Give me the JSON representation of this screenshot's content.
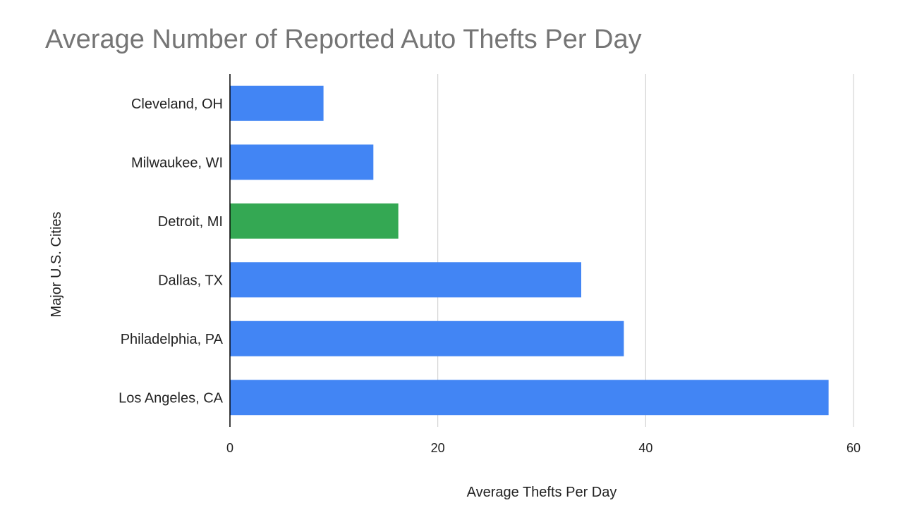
{
  "chart_data": {
    "type": "bar",
    "orientation": "horizontal",
    "title": "Average Number of Reported Auto Thefts Per Day",
    "xlabel": "Average Thefts Per Day",
    "ylabel": "Major U.S. Cities",
    "categories": [
      "Cleveland, OH",
      "Milwaukee, WI",
      "Detroit, MI",
      "Dallas, TX",
      "Philadelphia, PA",
      "Los Angeles, CA"
    ],
    "values": [
      9,
      13.8,
      16.2,
      33.8,
      37.9,
      57.6
    ],
    "bar_colors": [
      "#4285f4",
      "#4285f4",
      "#34a853",
      "#4285f4",
      "#4285f4",
      "#4285f4"
    ],
    "xlim": [
      0,
      60
    ],
    "xticks": [
      0,
      20,
      40,
      60
    ],
    "grid": true,
    "legend": "none"
  },
  "colors": {
    "title": "#757575",
    "axis": "#000000",
    "grid": "#cccccc",
    "text": "#222222"
  }
}
